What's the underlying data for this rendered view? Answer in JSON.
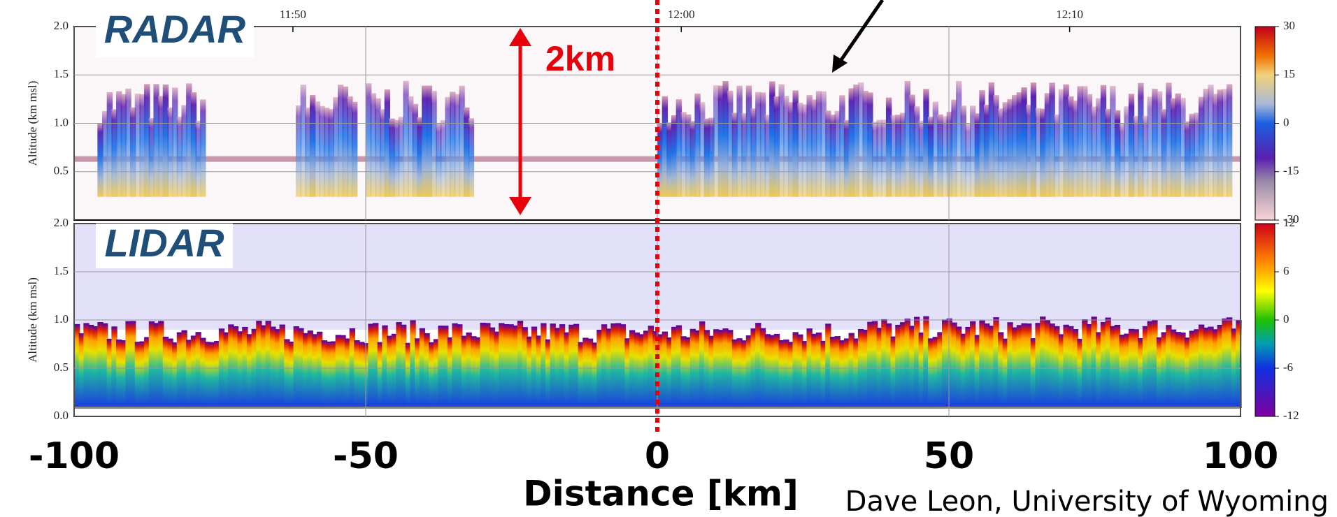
{
  "chart_data": [
    {
      "type": "heatmap",
      "title": "RADAR",
      "y_label": "Altitude (km msl)",
      "ylim": [
        0,
        2
      ],
      "yticks": [
        {
          "value": 0.5,
          "label": "0.5"
        },
        {
          "value": 1,
          "label": "1.0"
        },
        {
          "value": 1.5,
          "label": "1.5"
        },
        {
          "value": 2,
          "label": "2.0"
        }
      ],
      "x2lim": [
        "11:44:22",
        "12:14:24"
      ],
      "x2ticks": [
        "11:50",
        "12:00",
        "12:10"
      ],
      "colorbar": {
        "clim": [
          -30,
          30
        ],
        "ticks": [
          30,
          15,
          0,
          -15,
          -30
        ]
      }
    },
    {
      "type": "heatmap",
      "title": "LIDAR",
      "y_label": "Altitude (km msl)",
      "ylim": [
        0,
        2
      ],
      "yticks": [
        {
          "value": 0,
          "label": "0.0"
        },
        {
          "value": 0.5,
          "label": "0.5"
        },
        {
          "value": 1,
          "label": "1.0"
        },
        {
          "value": 1.5,
          "label": "1.5"
        },
        {
          "value": 2,
          "label": "2.0"
        }
      ],
      "colorbar": {
        "clim": [
          -12,
          12
        ],
        "ticks": [
          12,
          6,
          0,
          -6,
          -12
        ]
      }
    }
  ],
  "x_axis": {
    "label": "Distance [km]",
    "xlim": [
      -100,
      100
    ],
    "xticks": [
      -100,
      -50,
      0,
      50,
      100
    ]
  },
  "annotations": {
    "height": "2km",
    "credit": "Dave Leon, University of Wyoming"
  }
}
